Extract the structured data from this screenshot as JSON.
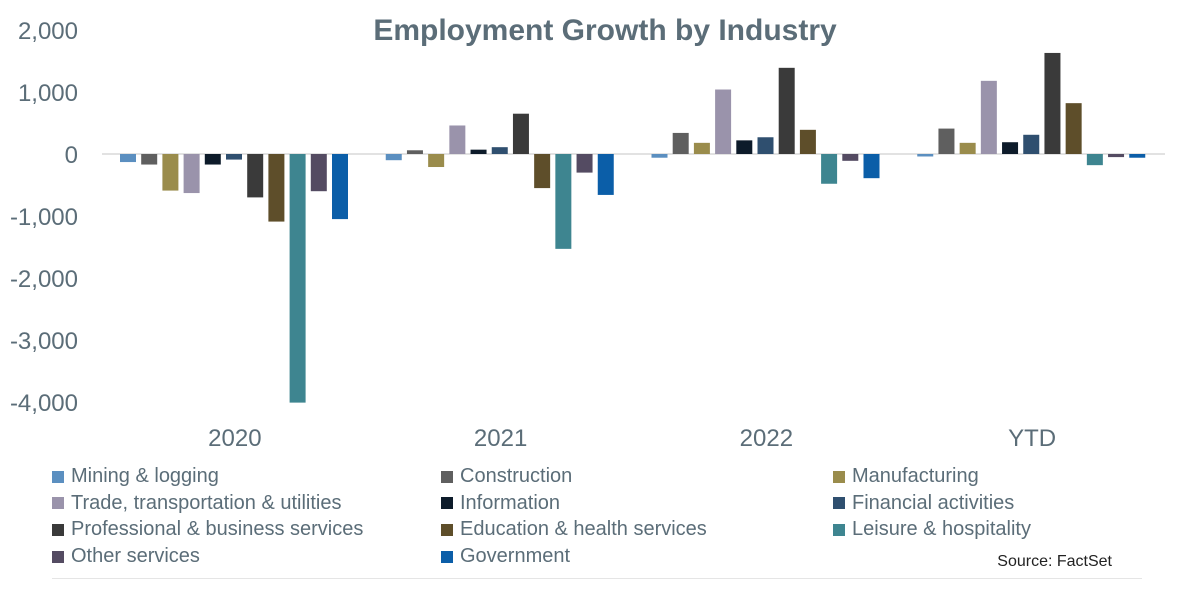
{
  "chart_data": {
    "type": "bar",
    "title": "Employment Growth by Industry",
    "categories": [
      "2020",
      "2021",
      "2022",
      "YTD"
    ],
    "ylim": [
      -4000,
      2000
    ],
    "yticks": [
      2000,
      1000,
      0,
      -1000,
      -2000,
      -3000,
      -4000
    ],
    "ytick_labels": [
      "2,000",
      "1,000",
      "0",
      "-1,000",
      "-2,000",
      "-3,000",
      "-4,000"
    ],
    "legend_position": "bottom",
    "series": [
      {
        "name": "Mining & logging",
        "color": "#5b8fc0",
        "values": [
          -130,
          -100,
          -60,
          -40
        ]
      },
      {
        "name": "Construction",
        "color": "#5f5f5f",
        "values": [
          -170,
          60,
          340,
          410
        ]
      },
      {
        "name": "Manufacturing",
        "color": "#9a8c4c",
        "values": [
          -590,
          -210,
          180,
          180
        ]
      },
      {
        "name": "Trade, transportation & utilities",
        "color": "#9a93ab",
        "values": [
          -630,
          460,
          1040,
          1180
        ]
      },
      {
        "name": "Information",
        "color": "#0d1b2a",
        "values": [
          -170,
          70,
          220,
          190
        ]
      },
      {
        "name": "Financial activities",
        "color": "#2f4f6f",
        "values": [
          -90,
          110,
          270,
          310
        ]
      },
      {
        "name": "Professional & business services",
        "color": "#3a3a3a",
        "values": [
          -700,
          650,
          1390,
          1630
        ]
      },
      {
        "name": "Education & health services",
        "color": "#5e4e2a",
        "values": [
          -1090,
          -550,
          390,
          820
        ]
      },
      {
        "name": "Leisure & hospitality",
        "color": "#3e8590",
        "values": [
          -4010,
          -1530,
          -480,
          -180
        ]
      },
      {
        "name": "Other services",
        "color": "#544b62",
        "values": [
          -600,
          -300,
          -110,
          -50
        ]
      },
      {
        "name": "Government",
        "color": "#0b5ea8",
        "values": [
          -1050,
          -660,
          -390,
          -60
        ]
      }
    ]
  },
  "source_note": "Source: FactSet",
  "colors": {
    "title": "#5b6d78",
    "axis_text": "#5b6d78",
    "zero_line": "#d9d9d9"
  }
}
